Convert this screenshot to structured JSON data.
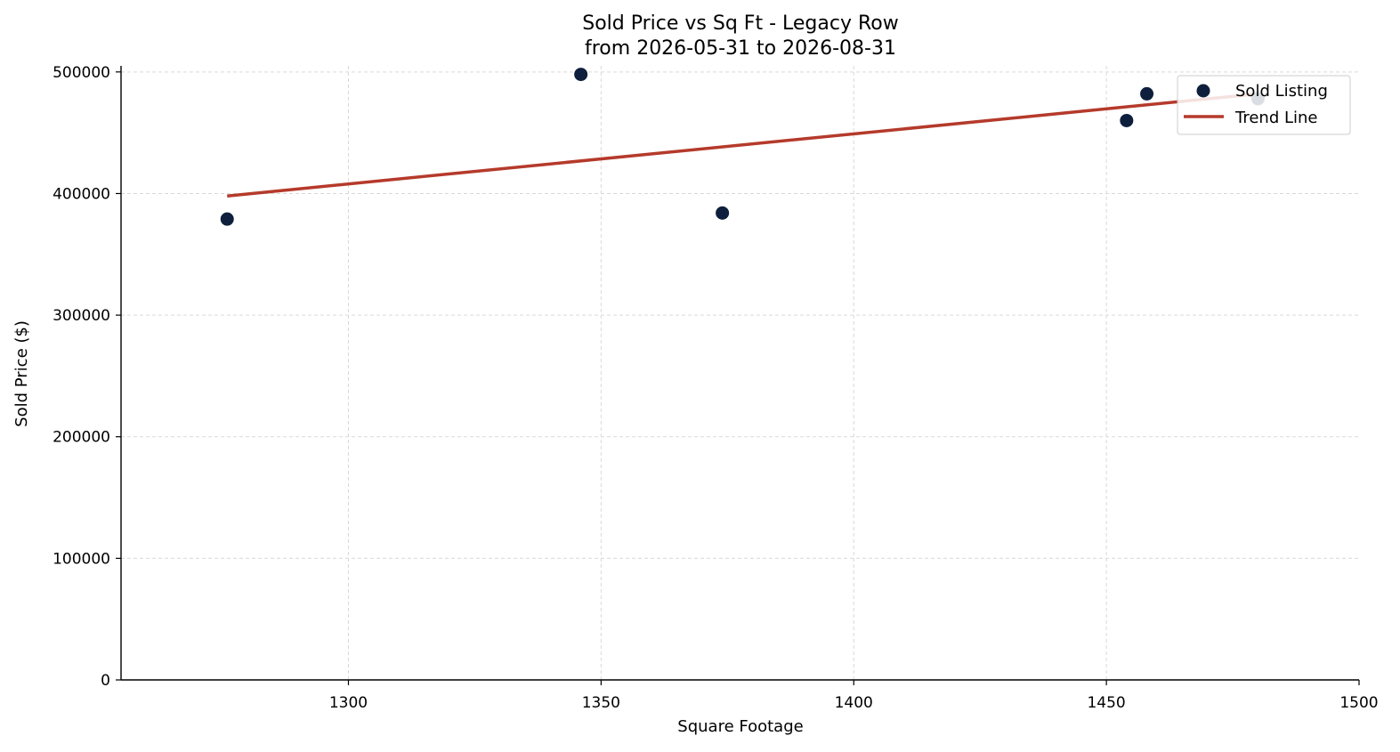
{
  "chart_data": {
    "type": "scatter",
    "title": "Sold Price vs Sq Ft - Legacy Row",
    "subtitle": "from 2026-05-31 to 2026-08-31",
    "xlabel": "Square Footage",
    "ylabel": "Sold Price ($)",
    "xlim": [
      1255,
      1500
    ],
    "ylim": [
      0,
      505000
    ],
    "xticks": [
      1300,
      1350,
      1400,
      1450,
      1500
    ],
    "yticks": [
      0,
      100000,
      200000,
      300000,
      400000,
      500000
    ],
    "grid": true,
    "legend_position": "upper right",
    "colors": {
      "points": "#0d1f3c",
      "trend": "#b53a2b"
    },
    "series": [
      {
        "name": "Sold Listing",
        "kind": "scatter",
        "points": [
          {
            "x": 1276,
            "y": 379000
          },
          {
            "x": 1346,
            "y": 498000
          },
          {
            "x": 1374,
            "y": 384000
          },
          {
            "x": 1454,
            "y": 460000
          },
          {
            "x": 1458,
            "y": 482000
          },
          {
            "x": 1480,
            "y": 478000
          }
        ]
      },
      {
        "name": "Trend Line",
        "kind": "line",
        "points": [
          {
            "x": 1276,
            "y": 398000
          },
          {
            "x": 1480,
            "y": 482000
          }
        ]
      }
    ]
  }
}
